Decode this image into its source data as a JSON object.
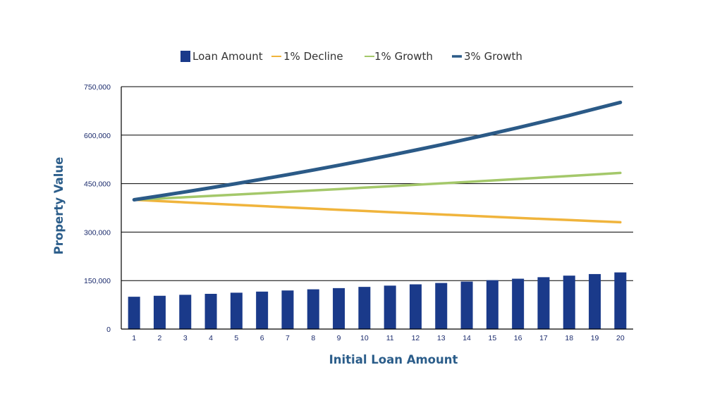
{
  "chart_data": {
    "type": "bar",
    "xlabel": "Initial Loan Amount",
    "ylabel": "Property Value",
    "ylim": [
      0,
      750000
    ],
    "yticks": [
      0,
      150000,
      300000,
      450000,
      600000,
      750000
    ],
    "ytick_labels": [
      "0",
      "150,000",
      "300,000",
      "450,000",
      "600,000",
      "750,000"
    ],
    "grid": true,
    "legend_position": "top",
    "categories": [
      "1",
      "2",
      "3",
      "4",
      "5",
      "6",
      "7",
      "8",
      "9",
      "10",
      "11",
      "12",
      "13",
      "14",
      "15",
      "16",
      "17",
      "18",
      "19",
      "20"
    ],
    "bars": {
      "name": "Loan Amount",
      "color": "#1a3a8a",
      "values": [
        100000,
        103000,
        106000,
        109000,
        112500,
        115900,
        119400,
        123000,
        126700,
        130500,
        134400,
        138400,
        142600,
        146900,
        151300,
        155800,
        160500,
        165300,
        170200,
        175300
      ]
    },
    "series": [
      {
        "name": "1% Decline",
        "type": "line",
        "color": "#f0b43c",
        "values": [
          400000,
          396000,
          392000,
          388100,
          384200,
          380400,
          376600,
          372800,
          369100,
          365400,
          361700,
          358100,
          354500,
          351000,
          347500,
          344000,
          340600,
          337200,
          333800,
          330500
        ]
      },
      {
        "name": "1% Growth",
        "type": "line",
        "color": "#a4c86a",
        "values": [
          400000,
          404000,
          408000,
          412100,
          416200,
          420400,
          424600,
          428900,
          433100,
          437500,
          441800,
          446300,
          450700,
          455200,
          459800,
          464400,
          469000,
          473700,
          478400,
          483200
        ]
      },
      {
        "name": "3% Growth",
        "type": "line",
        "color": "#2b5a87",
        "values": [
          400000,
          412000,
          424400,
          437100,
          450200,
          463700,
          477600,
          492000,
          506700,
          521900,
          537600,
          553700,
          570300,
          587400,
          605000,
          623200,
          641900,
          661100,
          681000,
          701400
        ]
      }
    ]
  }
}
